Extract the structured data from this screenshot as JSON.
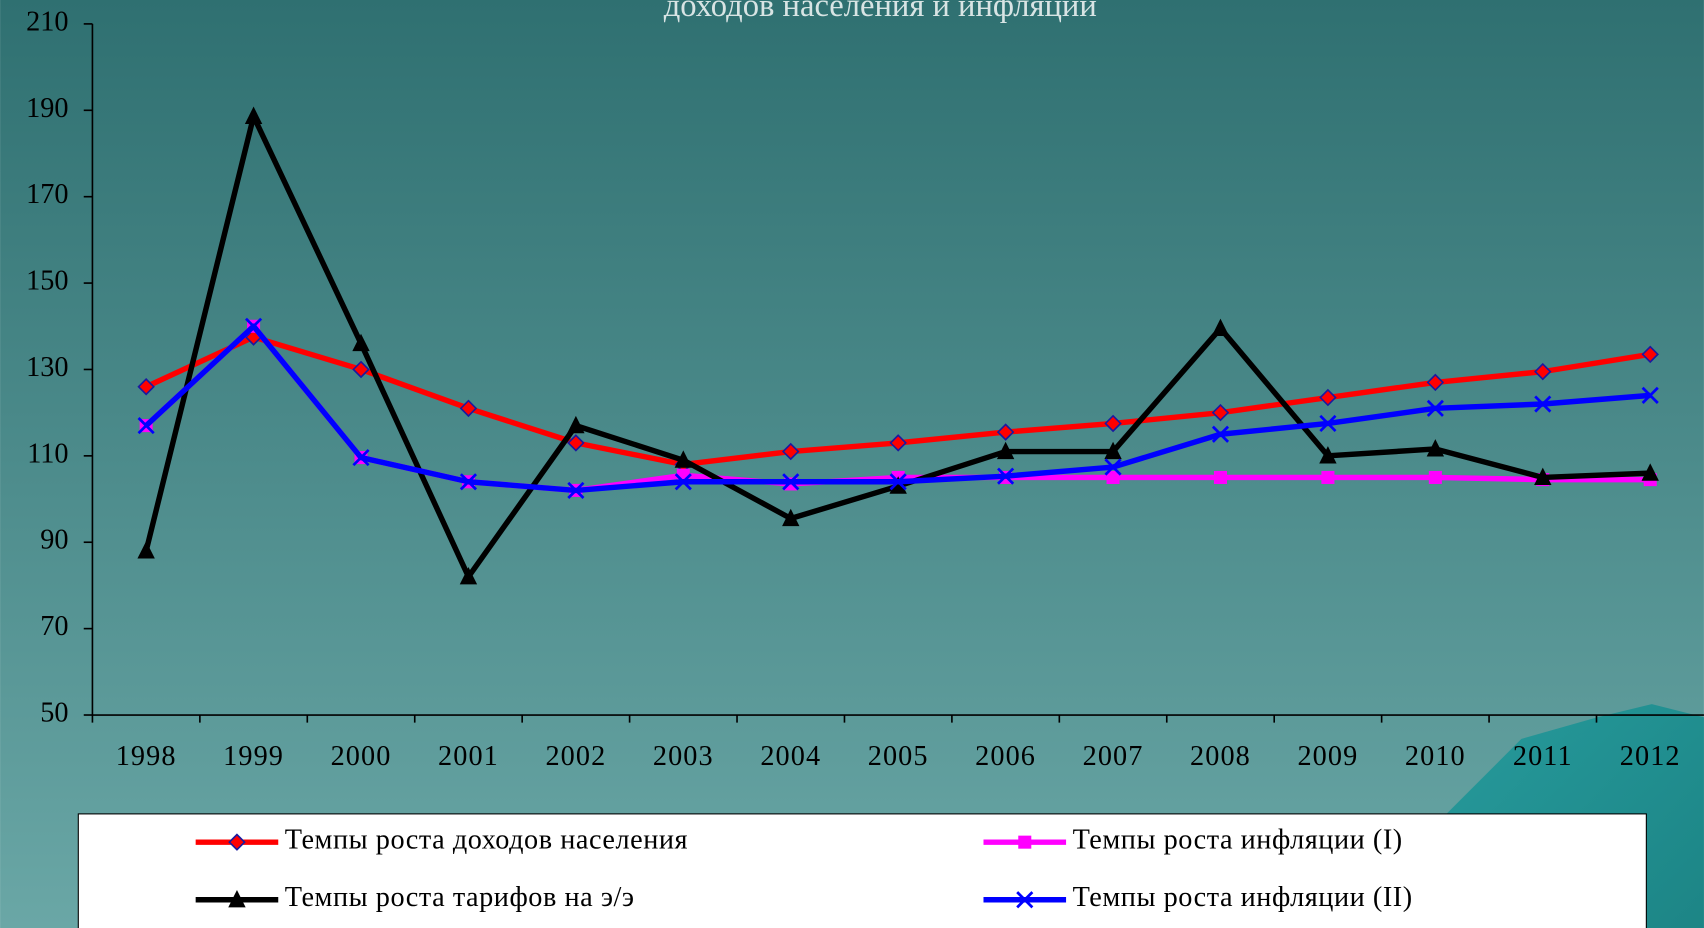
{
  "chart_data": {
    "type": "line",
    "title": "доходов населения и инфляции",
    "categories": [
      "1998",
      "1999",
      "2000",
      "2001",
      "2002",
      "2003",
      "2004",
      "2005",
      "2006",
      "2007",
      "2008",
      "2009",
      "2010",
      "2011",
      "2012"
    ],
    "ylim": [
      50,
      210
    ],
    "yticks": [
      50,
      70,
      90,
      110,
      130,
      150,
      170,
      190,
      210
    ],
    "series": [
      {
        "name": "Темпы роста доходов населения",
        "color": "#ff0000",
        "marker": "diamond",
        "values": [
          126,
          137.5,
          130,
          121,
          113,
          108,
          111,
          113,
          115.5,
          117.5,
          120,
          123.5,
          127,
          129.5,
          133.5
        ]
      },
      {
        "name": "Темпы роста инфляции (I)",
        "color": "#ff00ff",
        "marker": "square",
        "values": [
          117,
          140,
          109.6,
          104,
          102,
          105.5,
          103.5,
          105,
          105,
          105,
          105,
          105,
          105,
          104.5,
          104.5
        ]
      },
      {
        "name": "Темпы роста тарифов на э/э",
        "color": "#000000",
        "marker": "triangle",
        "values": [
          88,
          188.6,
          136,
          82,
          117,
          109,
          95.5,
          103,
          111,
          111,
          139.5,
          110,
          111.6,
          105,
          106
        ]
      },
      {
        "name": "Темпы роста инфляции (II)",
        "color": "#0000ff",
        "marker": "x",
        "values": [
          117,
          140,
          109.6,
          104,
          102,
          104,
          104,
          104,
          105.3,
          107.4,
          115,
          117.5,
          121,
          122,
          124
        ]
      }
    ],
    "legend": "bottom"
  }
}
